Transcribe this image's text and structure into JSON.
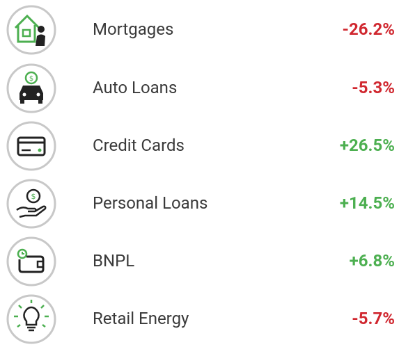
{
  "items": [
    {
      "label": "Mortgages",
      "value": "-26.2%",
      "color": "#d0272f"
    },
    {
      "label": "Auto Loans",
      "value": "-5.3%",
      "color": "#d0272f"
    },
    {
      "label": "Credit Cards",
      "value": "+26.5%",
      "color": "#4caf50"
    },
    {
      "label": "Personal Loans",
      "value": "+14.5%",
      "color": "#4caf50"
    },
    {
      "label": "BNPL",
      "value": "+6.8%",
      "color": "#4caf50"
    },
    {
      "label": "Retail Energy",
      "value": "-5.7%",
      "color": "#d0272f"
    }
  ]
}
